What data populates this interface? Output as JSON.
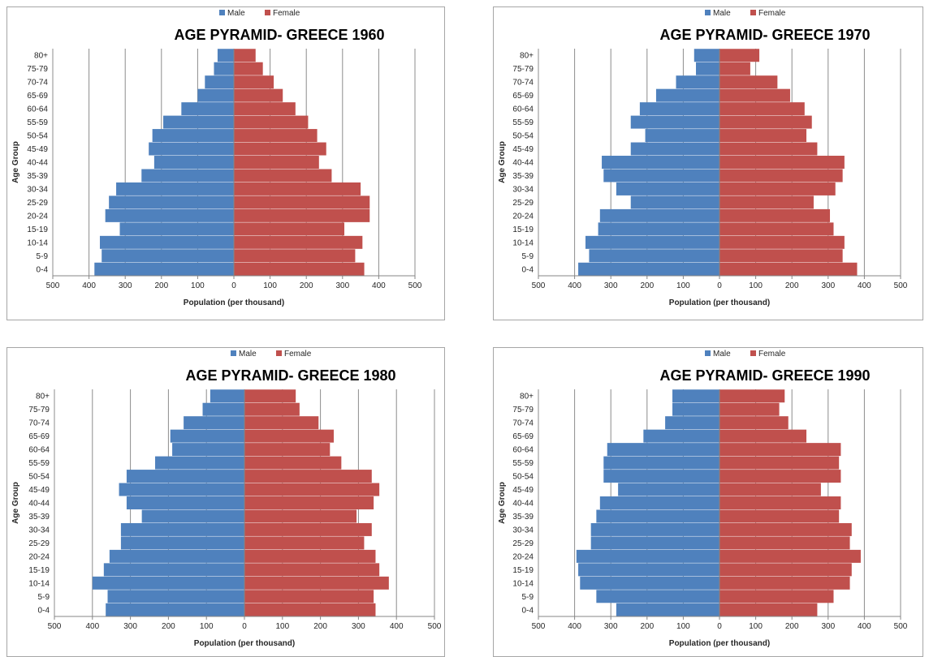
{
  "legend": {
    "male": "Male",
    "female": "Female"
  },
  "colors": {
    "male": "#4f81bd",
    "female": "#c0504d",
    "grid": "#8c8c8c",
    "axis": "#868686"
  },
  "chart_data": [
    {
      "type": "bar",
      "title": "AGE PYRAMID- GREECE 1960",
      "xlabel": "Population (per thousand)",
      "ylabel": "Age Group",
      "categories": [
        "80+",
        "75-79",
        "70-74",
        "65-69",
        "60-64",
        "55-59",
        "50-54",
        "45-49",
        "40-44",
        "35-39",
        "30-34",
        "25-29",
        "20-24",
        "15-19",
        "10-14",
        "5-9",
        "0-4"
      ],
      "series": [
        {
          "name": "Male",
          "values": [
            -45,
            -55,
            -80,
            -100,
            -145,
            -195,
            -225,
            -235,
            -220,
            -255,
            -325,
            -345,
            -355,
            -315,
            -370,
            -365,
            -385
          ]
        },
        {
          "name": "Female",
          "values": [
            60,
            80,
            110,
            135,
            170,
            205,
            230,
            255,
            235,
            270,
            350,
            375,
            375,
            305,
            355,
            335,
            360
          ]
        }
      ],
      "xlim": [
        -500,
        500
      ],
      "xticks": [
        500,
        400,
        300,
        200,
        100,
        0,
        100,
        200,
        300,
        400,
        500
      ],
      "legend_position": "top",
      "grid": true
    },
    {
      "type": "bar",
      "title": "AGE PYRAMID- GREECE 1970",
      "xlabel": "Population (per thousand)",
      "ylabel": "Age Group",
      "categories": [
        "80+",
        "75-79",
        "70-74",
        "65-69",
        "60-64",
        "55-59",
        "50-54",
        "45-49",
        "40-44",
        "35-39",
        "30-34",
        "25-29",
        "20-24",
        "15-19",
        "10-14",
        "5-9",
        "0-4"
      ],
      "series": [
        {
          "name": "Male",
          "values": [
            -70,
            -65,
            -120,
            -175,
            -220,
            -245,
            -205,
            -245,
            -325,
            -320,
            -285,
            -245,
            -330,
            -335,
            -370,
            -360,
            -390
          ]
        },
        {
          "name": "Female",
          "values": [
            110,
            85,
            160,
            195,
            235,
            255,
            240,
            270,
            345,
            340,
            320,
            260,
            305,
            315,
            345,
            340,
            380
          ]
        }
      ],
      "xlim": [
        -500,
        500
      ],
      "xticks": [
        500,
        400,
        300,
        200,
        100,
        0,
        100,
        200,
        300,
        400,
        500
      ],
      "legend_position": "top",
      "grid": true
    },
    {
      "type": "bar",
      "title": "AGE PYRAMID- GREECE 1980",
      "xlabel": "Population (per thousand)",
      "ylabel": "Age Group",
      "categories": [
        "80+",
        "75-79",
        "70-74",
        "65-69",
        "60-64",
        "55-59",
        "50-54",
        "45-49",
        "40-44",
        "35-39",
        "30-34",
        "25-29",
        "20-24",
        "15-19",
        "10-14",
        "5-9",
        "0-4"
      ],
      "series": [
        {
          "name": "Male",
          "values": [
            -90,
            -110,
            -160,
            -195,
            -190,
            -235,
            -310,
            -330,
            -310,
            -270,
            -325,
            -325,
            -355,
            -370,
            -400,
            -360,
            -365
          ]
        },
        {
          "name": "Female",
          "values": [
            135,
            145,
            195,
            235,
            225,
            255,
            335,
            355,
            340,
            295,
            335,
            315,
            345,
            355,
            380,
            340,
            345
          ]
        }
      ],
      "xlim": [
        -500,
        500
      ],
      "xticks": [
        500,
        400,
        300,
        200,
        100,
        0,
        100,
        200,
        300,
        400,
        500
      ],
      "legend_position": "top",
      "grid": true
    },
    {
      "type": "bar",
      "title": "AGE PYRAMID- GREECE 1990",
      "xlabel": "Population (per thousand)",
      "ylabel": "Age Group",
      "categories": [
        "80+",
        "75-79",
        "70-74",
        "65-69",
        "60-64",
        "55-59",
        "50-54",
        "45-49",
        "40-44",
        "35-39",
        "30-34",
        "25-29",
        "20-24",
        "15-19",
        "10-14",
        "5-9",
        "0-4"
      ],
      "series": [
        {
          "name": "Male",
          "values": [
            -130,
            -130,
            -150,
            -210,
            -310,
            -320,
            -320,
            -280,
            -330,
            -340,
            -355,
            -355,
            -395,
            -390,
            -385,
            -340,
            -285
          ]
        },
        {
          "name": "Female",
          "values": [
            180,
            165,
            190,
            240,
            335,
            330,
            335,
            280,
            335,
            330,
            365,
            360,
            390,
            365,
            360,
            315,
            270
          ]
        }
      ],
      "xlim": [
        -500,
        500
      ],
      "xticks": [
        500,
        400,
        300,
        200,
        100,
        0,
        100,
        200,
        300,
        400,
        500
      ],
      "legend_position": "top",
      "grid": true
    }
  ]
}
